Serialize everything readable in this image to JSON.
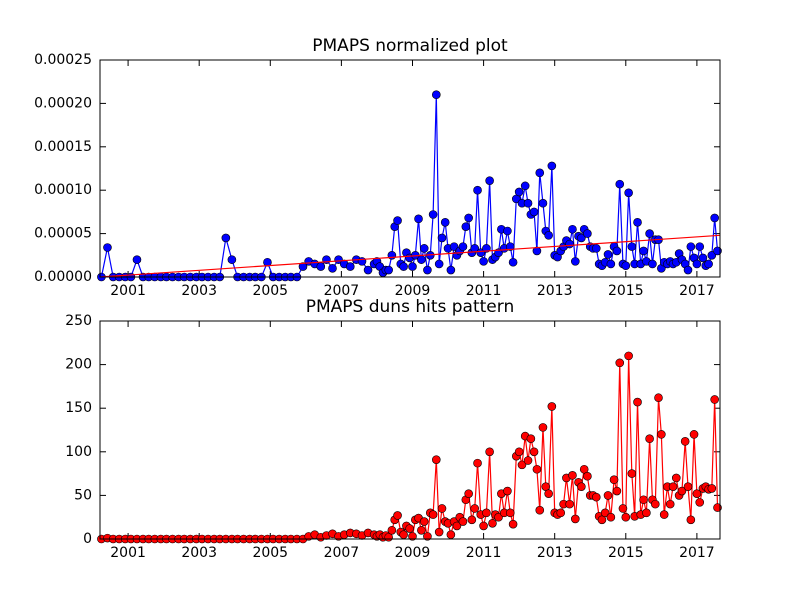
{
  "chart_data": [
    {
      "type": "line",
      "title": "PMAPS normalized plot",
      "x": [
        2000.25,
        2000.42,
        2000.58,
        2000.75,
        2000.92,
        2001.08,
        2001.25,
        2001.42,
        2001.58,
        2001.75,
        2001.92,
        2002.08,
        2002.25,
        2002.42,
        2002.58,
        2002.75,
        2002.92,
        2003.08,
        2003.25,
        2003.42,
        2003.58,
        2003.75,
        2003.92,
        2004.08,
        2004.25,
        2004.42,
        2004.58,
        2004.75,
        2004.92,
        2005.08,
        2005.25,
        2005.42,
        2005.58,
        2005.75,
        2005.92,
        2006.08,
        2006.25,
        2006.42,
        2006.58,
        2006.75,
        2006.92,
        2007.08,
        2007.25,
        2007.42,
        2007.58,
        2007.75,
        2007.92,
        2008,
        2008.08,
        2008.17,
        2008.25,
        2008.33,
        2008.42,
        2008.5,
        2008.58,
        2008.67,
        2008.75,
        2008.83,
        2008.92,
        2009,
        2009.08,
        2009.17,
        2009.25,
        2009.33,
        2009.42,
        2009.5,
        2009.58,
        2009.67,
        2009.75,
        2009.83,
        2009.92,
        2010,
        2010.08,
        2010.17,
        2010.25,
        2010.33,
        2010.42,
        2010.5,
        2010.58,
        2010.67,
        2010.75,
        2010.83,
        2010.92,
        2011,
        2011.08,
        2011.17,
        2011.25,
        2011.33,
        2011.42,
        2011.5,
        2011.58,
        2011.67,
        2011.75,
        2011.83,
        2011.92,
        2012,
        2012.08,
        2012.17,
        2012.25,
        2012.33,
        2012.42,
        2012.5,
        2012.58,
        2012.67,
        2012.75,
        2012.83,
        2012.92,
        2013,
        2013.08,
        2013.17,
        2013.25,
        2013.33,
        2013.42,
        2013.5,
        2013.58,
        2013.67,
        2013.75,
        2013.83,
        2013.92,
        2014,
        2014.08,
        2014.17,
        2014.25,
        2014.33,
        2014.42,
        2014.5,
        2014.58,
        2014.67,
        2014.75,
        2014.83,
        2014.92,
        2015,
        2015.08,
        2015.17,
        2015.25,
        2015.33,
        2015.42,
        2015.5,
        2015.58,
        2015.67,
        2015.75,
        2015.83,
        2015.92,
        2016,
        2016.08,
        2016.17,
        2016.25,
        2016.33,
        2016.42,
        2016.5,
        2016.58,
        2016.67,
        2016.75,
        2016.83,
        2016.92,
        2017,
        2017.08,
        2017.17,
        2017.25,
        2017.33,
        2017.42,
        2017.5,
        2017.58
      ],
      "series": [
        {
          "color": "#0000ff",
          "marker": true,
          "values": [
            0,
            3.4e-05,
            0,
            0,
            0,
            0,
            2e-05,
            0,
            0,
            0,
            0,
            0,
            0,
            0,
            0,
            0,
            0,
            0,
            0,
            0,
            0,
            4.5e-05,
            2e-05,
            0,
            0,
            0,
            0,
            0,
            1.7e-05,
            0,
            0,
            0,
            0,
            0,
            1.2e-05,
            1.8e-05,
            1.5e-05,
            1.2e-05,
            2e-05,
            1e-05,
            2e-05,
            1.5e-05,
            1.2e-05,
            2e-05,
            1.8e-05,
            8e-06,
            1.5e-05,
            1.8e-05,
            1.2e-05,
            5e-06,
            8e-06,
            8e-06,
            2.5e-05,
            5.8e-05,
            6.5e-05,
            1.5e-05,
            1.2e-05,
            2.8e-05,
            2.2e-05,
            1.2e-05,
            2.5e-05,
            6.7e-05,
            2e-05,
            3.3e-05,
            8e-06,
            2.5e-05,
            7.2e-05,
            0.00021,
            1.5e-05,
            4.5e-05,
            6.3e-05,
            3.3e-05,
            8e-06,
            3.5e-05,
            2.5e-05,
            3e-05,
            3.5e-05,
            5.8e-05,
            6.8e-05,
            2.8e-05,
            3.3e-05,
            0.0001,
            2.8e-05,
            1.8e-05,
            3.3e-05,
            0.000111,
            2e-05,
            2.3e-05,
            2.8e-05,
            5.5e-05,
            3.3e-05,
            5.3e-05,
            3.5e-05,
            1.7e-05,
            9e-05,
            9.8e-05,
            8.5e-05,
            0.000105,
            8.5e-05,
            7.2e-05,
            7.5e-05,
            3e-05,
            0.00012,
            8.5e-05,
            5.3e-05,
            4.8e-05,
            0.000128,
            2.5e-05,
            2.3e-05,
            3e-05,
            3.5e-05,
            4.2e-05,
            3.8e-05,
            5.5e-05,
            1.8e-05,
            4.7e-05,
            4.5e-05,
            5.5e-05,
            5e-05,
            3.5e-05,
            3.3e-05,
            3.3e-05,
            1.5e-05,
            1.3e-05,
            1.7e-05,
            2.6e-05,
            1.5e-05,
            3.5e-05,
            3e-05,
            0.000107,
            1.5e-05,
            1.3e-05,
            9.7e-05,
            3.5e-05,
            1.5e-05,
            6.3e-05,
            1.5e-05,
            3e-05,
            1.8e-05,
            5e-05,
            1.5e-05,
            4.3e-05,
            4.3e-05,
            1e-05,
            1.7e-05,
            1.5e-05,
            1.8e-05,
            1.5e-05,
            1.7e-05,
            2.7e-05,
            2e-05,
            1.5e-05,
            8e-06,
            3.5e-05,
            2.2e-05,
            1.5e-05,
            3.5e-05,
            2.2e-05,
            1.3e-05,
            1.5e-05,
            2.5e-05,
            6.8e-05,
            3e-05
          ]
        },
        {
          "color": "#ff0000",
          "marker": false,
          "x": [
            2000.21,
            2017.65
          ],
          "values": [
            0,
            4.8e-05
          ]
        }
      ],
      "xlim": [
        2000.21,
        2017.65
      ],
      "ylim": [
        0,
        0.00025
      ],
      "xticks": [
        2001,
        2003,
        2005,
        2007,
        2009,
        2011,
        2013,
        2015,
        2017
      ],
      "yticks": [
        {
          "value": 0,
          "label": "0.00000"
        },
        {
          "value": 5e-05,
          "label": "0.00005"
        },
        {
          "value": 0.0001,
          "label": "0.00010"
        },
        {
          "value": 0.00015,
          "label": "0.00015"
        },
        {
          "value": 0.0002,
          "label": "0.00020"
        },
        {
          "value": 0.00025,
          "label": "0.00025"
        }
      ]
    },
    {
      "type": "line",
      "title": "PMAPS duns hits pattern",
      "x": [
        2000.25,
        2000.42,
        2000.58,
        2000.75,
        2000.92,
        2001.08,
        2001.25,
        2001.42,
        2001.58,
        2001.75,
        2001.92,
        2002.08,
        2002.25,
        2002.42,
        2002.58,
        2002.75,
        2002.92,
        2003.08,
        2003.25,
        2003.42,
        2003.58,
        2003.75,
        2003.92,
        2004.08,
        2004.25,
        2004.42,
        2004.58,
        2004.75,
        2004.92,
        2005.08,
        2005.25,
        2005.42,
        2005.58,
        2005.75,
        2005.92,
        2006.08,
        2006.25,
        2006.42,
        2006.58,
        2006.75,
        2006.92,
        2007.08,
        2007.25,
        2007.42,
        2007.58,
        2007.75,
        2007.92,
        2008,
        2008.08,
        2008.17,
        2008.25,
        2008.33,
        2008.42,
        2008.5,
        2008.58,
        2008.67,
        2008.75,
        2008.83,
        2008.92,
        2009,
        2009.08,
        2009.17,
        2009.25,
        2009.33,
        2009.42,
        2009.5,
        2009.58,
        2009.67,
        2009.75,
        2009.83,
        2009.92,
        2010,
        2010.08,
        2010.17,
        2010.25,
        2010.33,
        2010.42,
        2010.5,
        2010.58,
        2010.67,
        2010.75,
        2010.83,
        2010.92,
        2011,
        2011.08,
        2011.17,
        2011.25,
        2011.33,
        2011.42,
        2011.5,
        2011.58,
        2011.67,
        2011.75,
        2011.83,
        2011.92,
        2012,
        2012.08,
        2012.17,
        2012.25,
        2012.33,
        2012.42,
        2012.5,
        2012.58,
        2012.67,
        2012.75,
        2012.83,
        2012.92,
        2013,
        2013.08,
        2013.17,
        2013.25,
        2013.33,
        2013.42,
        2013.5,
        2013.58,
        2013.67,
        2013.75,
        2013.83,
        2013.92,
        2014,
        2014.08,
        2014.17,
        2014.25,
        2014.33,
        2014.42,
        2014.5,
        2014.58,
        2014.67,
        2014.75,
        2014.83,
        2014.92,
        2015,
        2015.08,
        2015.17,
        2015.25,
        2015.33,
        2015.42,
        2015.5,
        2015.58,
        2015.67,
        2015.75,
        2015.83,
        2015.92,
        2016,
        2016.08,
        2016.17,
        2016.25,
        2016.33,
        2016.42,
        2016.5,
        2016.58,
        2016.67,
        2016.75,
        2016.83,
        2016.92,
        2017,
        2017.08,
        2017.17,
        2017.25,
        2017.33,
        2017.42,
        2017.5,
        2017.58
      ],
      "series": [
        {
          "color": "#ff0000",
          "marker": true,
          "values": [
            0,
            1,
            0,
            0,
            0,
            0,
            0,
            0,
            0,
            0,
            0,
            0,
            0,
            0,
            0,
            0,
            0,
            0,
            0,
            0,
            0,
            0,
            0,
            0,
            0,
            0,
            0,
            0,
            0,
            0,
            0,
            0,
            0,
            0,
            0,
            3,
            5,
            2,
            4,
            6,
            3,
            5,
            7,
            6,
            4,
            7,
            5,
            3,
            5,
            2,
            4,
            2,
            10,
            22,
            27,
            8,
            5,
            15,
            12,
            3,
            22,
            24,
            10,
            20,
            3,
            30,
            28,
            91,
            8,
            35,
            20,
            18,
            5,
            20,
            15,
            25,
            20,
            45,
            52,
            22,
            35,
            87,
            28,
            15,
            30,
            100,
            18,
            28,
            25,
            52,
            30,
            55,
            30,
            17,
            95,
            100,
            85,
            118,
            90,
            115,
            100,
            80,
            33,
            128,
            60,
            52,
            152,
            30,
            28,
            30,
            40,
            70,
            40,
            73,
            23,
            65,
            60,
            80,
            72,
            50,
            50,
            48,
            26,
            22,
            30,
            50,
            25,
            68,
            55,
            202,
            35,
            25,
            210,
            75,
            26,
            157,
            28,
            45,
            30,
            115,
            45,
            40,
            162,
            120,
            28,
            60,
            40,
            60,
            70,
            50,
            55,
            112,
            60,
            22,
            120,
            52,
            42,
            58,
            60,
            57,
            58,
            160,
            36
          ]
        }
      ],
      "xlim": [
        2000.21,
        2017.65
      ],
      "ylim": [
        0,
        250
      ],
      "xticks": [
        2001,
        2003,
        2005,
        2007,
        2009,
        2011,
        2013,
        2015,
        2017
      ],
      "yticks": [
        0,
        50,
        100,
        150,
        200,
        250
      ]
    }
  ]
}
